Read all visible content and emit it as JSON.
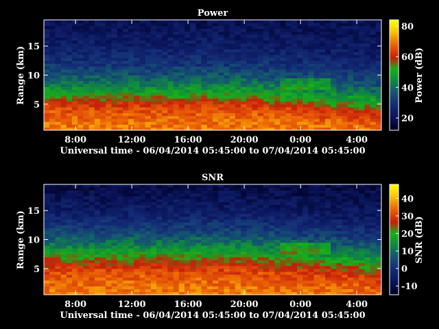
{
  "chart_data": [
    {
      "type": "heatmap",
      "title": "Power",
      "xlabel": "Universal time - 06/04/2014 05:45:00 to 07/04/2014 05:45:00",
      "ylabel": "Range (km)",
      "colorbar_label": "Power (dB)",
      "x_start": "06/04/2014 05:45:00",
      "x_end": "07/04/2014 05:45:00",
      "x_ticks": [
        "8:00",
        "12:00",
        "16:00",
        "20:00",
        "0:00",
        "4:00"
      ],
      "x_tick_hours": [
        8,
        12,
        16,
        20,
        24,
        28
      ],
      "xlim_hours": [
        5.75,
        29.75
      ],
      "y_ticks": [
        "5",
        "10",
        "15"
      ],
      "y_tick_values": [
        5,
        10,
        15
      ],
      "ylim": [
        0.5,
        19.5
      ],
      "colorbar_ticks": [
        "20",
        "40",
        "60",
        "80"
      ],
      "colorbar_tick_values": [
        20,
        40,
        60,
        80
      ],
      "clim": [
        12,
        84
      ],
      "value_profile_by_range_km": [
        {
          "range_km": 1,
          "value": 70
        },
        {
          "range_km": 3,
          "value": 68
        },
        {
          "range_km": 5,
          "value": 62
        },
        {
          "range_km": 7,
          "value": 50
        },
        {
          "range_km": 9,
          "value": 40
        },
        {
          "range_km": 12,
          "value": 30
        },
        {
          "range_km": 15,
          "value": 24
        },
        {
          "range_km": 19,
          "value": 20
        }
      ],
      "feature": "layer top near 7 km descending to about 5 km after 20:00, enhanced values near 8-9 km around 0:00"
    },
    {
      "type": "heatmap",
      "title": "SNR",
      "xlabel": "Universal time - 06/04/2014 05:45:00 to 07/04/2014 05:45:00",
      "ylabel": "Range (km)",
      "colorbar_label": "SNR (dB)",
      "x_start": "06/04/2014 05:45:00",
      "x_end": "07/04/2014 05:45:00",
      "x_ticks": [
        "8:00",
        "12:00",
        "16:00",
        "20:00",
        "0:00",
        "4:00"
      ],
      "x_tick_hours": [
        8,
        12,
        16,
        20,
        24,
        28
      ],
      "xlim_hours": [
        5.75,
        29.75
      ],
      "y_ticks": [
        "5",
        "10",
        "15"
      ],
      "y_tick_values": [
        5,
        10,
        15
      ],
      "ylim": [
        0.5,
        19.5
      ],
      "colorbar_ticks": [
        "-10",
        "0",
        "10",
        "20",
        "30",
        "40"
      ],
      "colorbar_tick_values": [
        -10,
        0,
        10,
        20,
        30,
        40
      ],
      "clim": [
        -15,
        48
      ],
      "value_profile_by_range_km": [
        {
          "range_km": 1,
          "value": 36
        },
        {
          "range_km": 3,
          "value": 34
        },
        {
          "range_km": 5,
          "value": 30
        },
        {
          "range_km": 7,
          "value": 22
        },
        {
          "range_km": 9,
          "value": 12
        },
        {
          "range_km": 12,
          "value": 2
        },
        {
          "range_km": 15,
          "value": -5
        },
        {
          "range_km": 19,
          "value": -10
        }
      ],
      "feature": "strong echoes below 7 km, layer near 8-9 km around 0:00"
    }
  ]
}
